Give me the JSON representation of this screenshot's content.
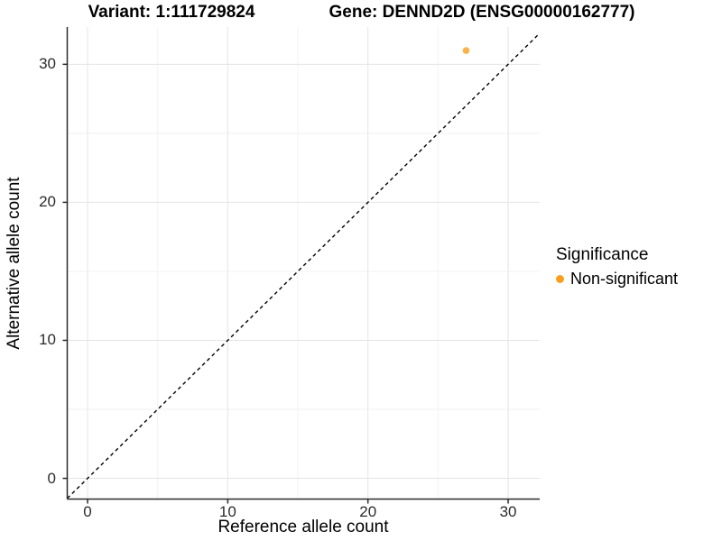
{
  "chart_data": {
    "type": "scatter",
    "titles": {
      "left": "Variant: 1:111729824",
      "right": "Gene: DENND2D (ENSG00000162777)"
    },
    "xlabel": "Reference allele count",
    "ylabel": "Alternative allele count",
    "xlim": [
      -1.45,
      32.25
    ],
    "ylim": [
      -1.5,
      32.7
    ],
    "xticks": [
      0,
      10,
      20,
      30
    ],
    "yticks": [
      0,
      10,
      20,
      30
    ],
    "x_minor_gridlines": [
      5,
      15,
      25
    ],
    "y_minor_gridlines": [
      5,
      15,
      25
    ],
    "grid": "major+minor, light gray on white",
    "points": [
      {
        "x": 27,
        "y": 31,
        "series": "Non-significant"
      }
    ],
    "reference_line": {
      "kind": "identity y=x",
      "style": "dashed",
      "color": "#000000"
    },
    "legend": {
      "title": "Significance",
      "position": "right",
      "entries": [
        {
          "label": "Non-significant",
          "color": "#F9A01E"
        }
      ]
    },
    "colors": {
      "point": "#F9A01E",
      "grid_major": "#E4E4E4",
      "grid_minor": "#F1F1F1",
      "axis": "#2b2b2b",
      "ref_line": "#000000"
    }
  }
}
